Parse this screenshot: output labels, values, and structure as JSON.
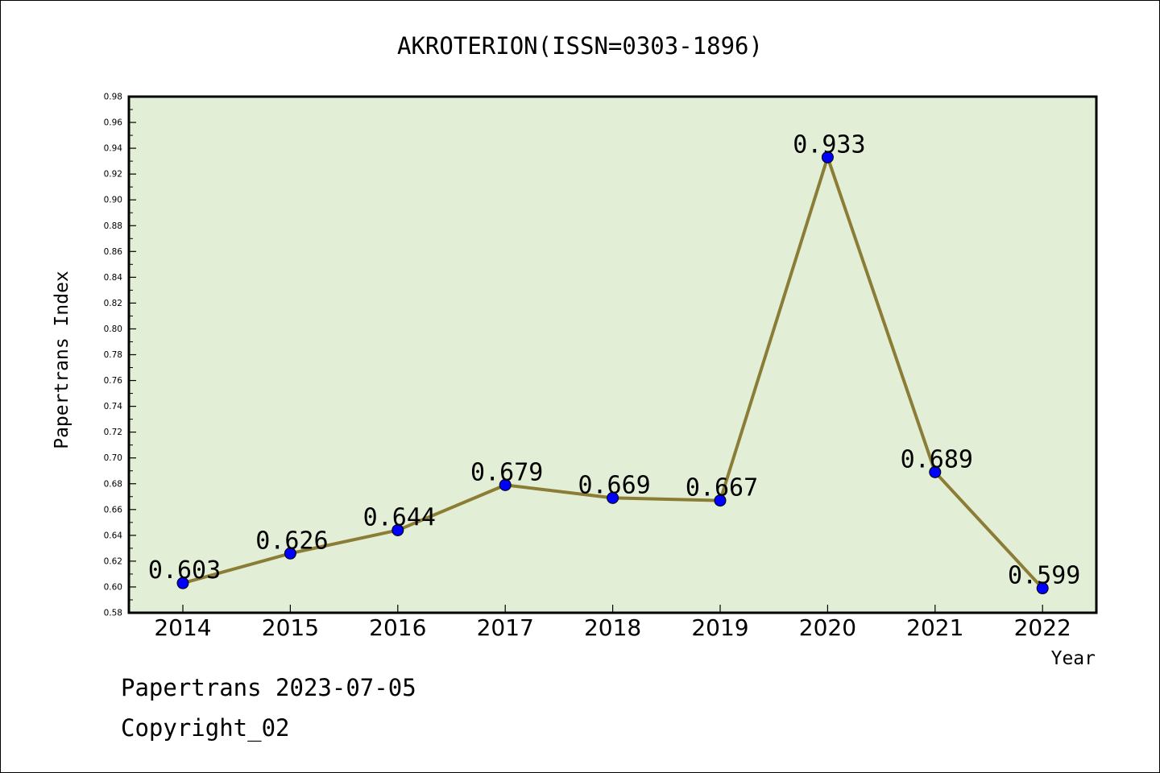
{
  "chart_data": {
    "type": "line",
    "title": "AKROTERION(ISSN=0303-1896)",
    "xlabel": "Year",
    "ylabel": "Papertrans Index",
    "categories": [
      "2014",
      "2015",
      "2016",
      "2017",
      "2018",
      "2019",
      "2020",
      "2021",
      "2022"
    ],
    "series": [
      {
        "values": [
          0.603,
          0.626,
          0.644,
          0.679,
          0.669,
          0.667,
          0.933,
          0.689,
          0.599
        ]
      }
    ],
    "data_labels": [
      "0.603",
      "0.626",
      "0.644",
      "0.679",
      "0.669",
      "0.667",
      "0.933",
      "0.689",
      "0.599"
    ],
    "ylim": [
      0.58,
      0.98
    ],
    "yticks": [
      "0.58",
      "0.60",
      "0.62",
      "0.64",
      "0.66",
      "0.68",
      "0.70",
      "0.72",
      "0.74",
      "0.76",
      "0.78",
      "0.80",
      "0.82",
      "0.84",
      "0.86",
      "0.88",
      "0.90",
      "0.92",
      "0.94",
      "0.96",
      "0.98"
    ],
    "grid": false,
    "legend": "none"
  },
  "footer": {
    "line1": "Papertrans 2023-07-05",
    "line2": "Copyright_02"
  },
  "colors": {
    "plot_background": "#e2efd6",
    "line": "#8b7d35",
    "marker": "#0000ff",
    "axes": "#000000"
  }
}
